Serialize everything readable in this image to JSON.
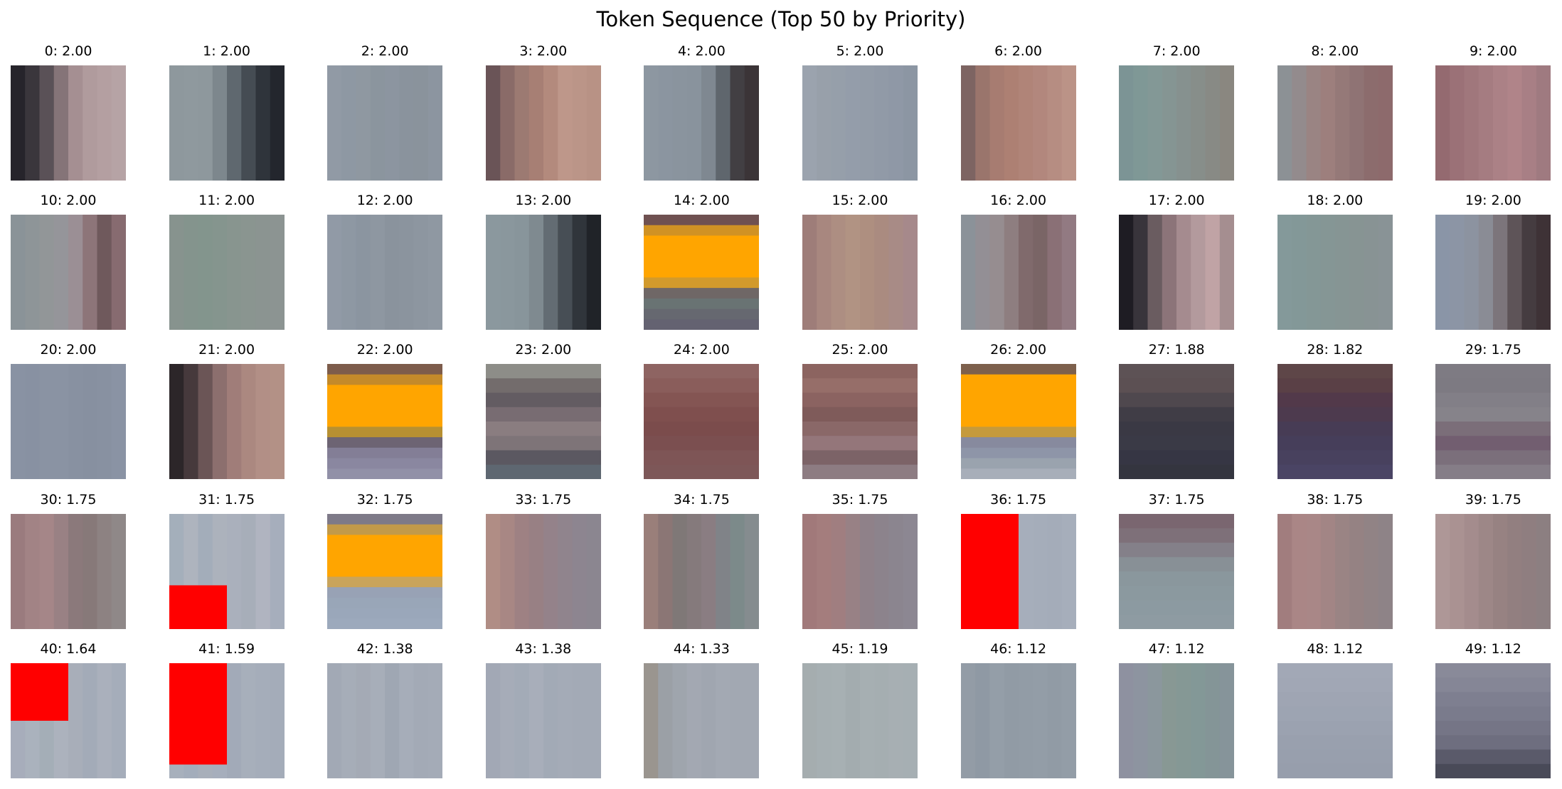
{
  "chart_data": {
    "type": "image-grid",
    "title": "Token Sequence (Top 50 by Priority)",
    "tokens": [
      {
        "index": 0,
        "priority": "2.00",
        "colors": [
          "#26242b",
          "#3a363c",
          "#5a5157",
          "#857478",
          "#a58f92",
          "#b09b9d",
          "#b49fa1",
          "#b6a3a5"
        ],
        "dir": "v"
      },
      {
        "index": 1,
        "priority": "2.00",
        "colors": [
          "#8e989d",
          "#8f999e",
          "#8e989d",
          "#7d878d",
          "#5f686f",
          "#454c53",
          "#2f343b",
          "#23262d"
        ],
        "dir": "v"
      },
      {
        "index": 2,
        "priority": "2.00",
        "colors": [
          "#919aa5",
          "#8e98a3",
          "#8f98a1",
          "#8b959e",
          "#8c95a0",
          "#8a939d",
          "#8a939c",
          "#8c95a0"
        ],
        "dir": "v"
      },
      {
        "index": 3,
        "priority": "2.00",
        "colors": [
          "#6a5457",
          "#8a6b68",
          "#9c7a72",
          "#a77f74",
          "#b38a7d",
          "#be978a",
          "#bb9588",
          "#b89285"
        ],
        "dir": "v"
      },
      {
        "index": 4,
        "priority": "2.00",
        "colors": [
          "#8d97a1",
          "#8b95a0",
          "#8a949e",
          "#89939d",
          "#7f8891",
          "#5f666d",
          "#423f43",
          "#3b3437"
        ],
        "dir": "v"
      },
      {
        "index": 5,
        "priority": "2.00",
        "colors": [
          "#9ba3ae",
          "#98a0aa",
          "#969faa",
          "#949daa",
          "#939ca8",
          "#919aa7",
          "#8f98a6",
          "#8c96a3"
        ],
        "dir": "v"
      },
      {
        "index": 6,
        "priority": "2.00",
        "colors": [
          "#7d6462",
          "#9a756c",
          "#a77c71",
          "#ad8073",
          "#b08478",
          "#b2877d",
          "#b68d82",
          "#bb9387"
        ],
        "dir": "v"
      },
      {
        "index": 7,
        "priority": "2.00",
        "colors": [
          "#7c9495",
          "#7f9896",
          "#839896",
          "#859593",
          "#86918f",
          "#878e8a",
          "#888a85",
          "#8a8780"
        ],
        "dir": "v"
      },
      {
        "index": 8,
        "priority": "2.00",
        "colors": [
          "#8c9195",
          "#938b8d",
          "#9a8483",
          "#9d7f7d",
          "#957978",
          "#8f7374",
          "#8c6c6d",
          "#8d6a6c"
        ],
        "dir": "v"
      },
      {
        "index": 9,
        "priority": "2.00",
        "colors": [
          "#946a70",
          "#9b7177",
          "#a0777c",
          "#a57c81",
          "#ab8186",
          "#b08489",
          "#a87f85",
          "#9f7a80"
        ],
        "dir": "v"
      },
      {
        "index": 10,
        "priority": "2.00",
        "colors": [
          "#8a9398",
          "#8e9598",
          "#929698",
          "#95959a",
          "#9b8f95",
          "#8d7579",
          "#6f595c",
          "#876b70"
        ],
        "dir": "v"
      },
      {
        "index": 11,
        "priority": "2.00",
        "colors": [
          "#87938e",
          "#84948d",
          "#83958d",
          "#85958e",
          "#88958f",
          "#8a9590",
          "#8b9491",
          "#8c9492"
        ],
        "dir": "v"
      },
      {
        "index": 12,
        "priority": "2.00",
        "colors": [
          "#919aa6",
          "#8e98a3",
          "#8b95a0",
          "#8e97a1",
          "#8a939d",
          "#8b949e",
          "#8d96a0",
          "#8f98a2"
        ],
        "dir": "v"
      },
      {
        "index": 13,
        "priority": "2.00",
        "colors": [
          "#8b989e",
          "#8a979d",
          "#88959b",
          "#7f8a90",
          "#636c73",
          "#474e55",
          "#30353b",
          "#202328"
        ],
        "dir": "v"
      },
      {
        "index": 14,
        "priority": "2.00",
        "colors": [
          "#6f5151",
          "#d09224",
          "#ffa500",
          "#ffa500",
          "#ffa500",
          "#ffa500",
          "#d29a2c",
          "#6f6766",
          "#697373",
          "#666870",
          "#646271"
        ],
        "dir": "h"
      },
      {
        "index": 15,
        "priority": "2.00",
        "colors": [
          "#9e7d79",
          "#a8877f",
          "#ad8e82",
          "#b19383",
          "#ae8f80",
          "#aa8b80",
          "#a88b86",
          "#a6898b"
        ],
        "dir": "v"
      },
      {
        "index": 16,
        "priority": "2.00",
        "colors": [
          "#8b9299",
          "#938f95",
          "#968d90",
          "#8e7e80",
          "#806a6c",
          "#7a6566",
          "#8a7076",
          "#927a82"
        ],
        "dir": "v"
      },
      {
        "index": 17,
        "priority": "2.00",
        "colors": [
          "#1e1c23",
          "#38343b",
          "#6a5c60",
          "#8c7479",
          "#a58b8f",
          "#b39a9d",
          "#c0a3a5",
          "#a58e90"
        ],
        "dir": "v"
      },
      {
        "index": 18,
        "priority": "2.00",
        "colors": [
          "#84999a",
          "#839898",
          "#849796",
          "#859695",
          "#869594",
          "#879493",
          "#889394",
          "#899396"
        ],
        "dir": "v"
      },
      {
        "index": 19,
        "priority": "2.00",
        "colors": [
          "#8a95a7",
          "#8c95a5",
          "#8c93a0",
          "#8a8c95",
          "#7c757b",
          "#5e5458",
          "#453c40",
          "#3e3236"
        ],
        "dir": "v"
      },
      {
        "index": 20,
        "priority": "2.00",
        "colors": [
          "#8992a3",
          "#8891a2",
          "#8a93a3",
          "#8a93a3",
          "#8891a1",
          "#8790a0",
          "#8891a1",
          "#8a93a4"
        ],
        "dir": "v"
      },
      {
        "index": 21,
        "priority": "2.00",
        "colors": [
          "#2c2629",
          "#46393c",
          "#6b5556",
          "#8c6f6e",
          "#a07d79",
          "#ab8880",
          "#b28f86",
          "#b39186"
        ],
        "dir": "v"
      },
      {
        "index": 22,
        "priority": "2.00",
        "colors": [
          "#7d5c4b",
          "#c48a2a",
          "#ffa500",
          "#ffa500",
          "#ffa500",
          "#ffa500",
          "#b79032",
          "#6d6473",
          "#837e96",
          "#8a87a0",
          "#9190a7"
        ],
        "dir": "h"
      },
      {
        "index": 23,
        "priority": "2.00",
        "colors": [
          "#8d8d88",
          "#736c6c",
          "#635c62",
          "#786c72",
          "#8a7d80",
          "#7e7478",
          "#5b5861",
          "#5e6771"
        ],
        "dir": "h"
      },
      {
        "index": 24,
        "priority": "2.00",
        "colors": [
          "#8e6462",
          "#8a5d5b",
          "#845553",
          "#7f4f4e",
          "#7b4c4c",
          "#7b4f50",
          "#7e5556",
          "#7d5758"
        ],
        "dir": "h"
      },
      {
        "index": 25,
        "priority": "2.00",
        "colors": [
          "#8c6460",
          "#966e69",
          "#8b6361",
          "#7f5b5a",
          "#8a6868",
          "#94767a",
          "#7c6367",
          "#8d7c82"
        ],
        "dir": "h"
      },
      {
        "index": 26,
        "priority": "2.00",
        "colors": [
          "#7d604c",
          "#ffa500",
          "#ffa500",
          "#ffa500",
          "#ffa500",
          "#ffa500",
          "#c59a3c",
          "#878a9e",
          "#8e95a8",
          "#9aa3ae",
          "#a7aeb9"
        ],
        "dir": "h"
      },
      {
        "index": 27,
        "priority": "1.88",
        "colors": [
          "#5d5255",
          "#5c5053",
          "#4f484e",
          "#403d46",
          "#3a3944",
          "#3a3a46",
          "#363644",
          "#34353f"
        ],
        "dir": "h"
      },
      {
        "index": 28,
        "priority": "1.82",
        "colors": [
          "#5e4648",
          "#5a4046",
          "#52394a",
          "#4d3a4e",
          "#473c55",
          "#463e5a",
          "#48415e",
          "#4a4464"
        ],
        "dir": "h"
      },
      {
        "index": 29,
        "priority": "1.75",
        "colors": [
          "#7e7b83",
          "#7d7a82",
          "#827f87",
          "#86838a",
          "#7b6e79",
          "#725e70",
          "#7b6f7b",
          "#857d87"
        ],
        "dir": "h"
      },
      {
        "index": 30,
        "priority": "1.75",
        "colors": [
          "#9a7b7e",
          "#a28385",
          "#a58688",
          "#998184",
          "#8b797b",
          "#877979",
          "#8d8282",
          "#8f8888"
        ],
        "dir": "v"
      },
      {
        "index": 31,
        "priority": "1.75",
        "colors": [
          "#a4afbb",
          "#aeb4be",
          "#a3adba",
          "#acb2bc",
          "#aab0bc",
          "#a7aeb9",
          "#b0b4c0",
          "#a6aebc"
        ],
        "dir": "v",
        "red_box": [
          0,
          0.62,
          0.5,
          1
        ]
      },
      {
        "index": 32,
        "priority": "1.75",
        "colors": [
          "#7e7a88",
          "#c29a4a",
          "#ffa500",
          "#ffa500",
          "#ffa500",
          "#ffa500",
          "#c9a45b",
          "#98a2b5",
          "#99a6b8",
          "#9aa7ba",
          "#9ca9bc"
        ],
        "dir": "h"
      },
      {
        "index": 33,
        "priority": "1.75",
        "colors": [
          "#b08d85",
          "#a88784",
          "#9e8183",
          "#988084",
          "#94828a",
          "#90848d",
          "#8d8590",
          "#8b8690"
        ],
        "dir": "v"
      },
      {
        "index": 34,
        "priority": "1.75",
        "colors": [
          "#9a7f7a",
          "#8b7675",
          "#7f7877",
          "#857a7c",
          "#8a7d82",
          "#808388",
          "#7c8a8a",
          "#858c8f"
        ],
        "dir": "v"
      },
      {
        "index": 35,
        "priority": "1.75",
        "colors": [
          "#a1797a",
          "#a47d7d",
          "#a07e80",
          "#988185",
          "#8f8189",
          "#8c838c",
          "#8b858f",
          "#8c8792"
        ],
        "dir": "v"
      },
      {
        "index": 36,
        "priority": "1.75",
        "colors": [
          "#a4adba",
          "#a6afbc",
          "#a5aebb",
          "#a8b0bd",
          "#a6aebb",
          "#a5adba",
          "#a4acb9",
          "#a6aebb"
        ],
        "dir": "v",
        "red_box": [
          0,
          0,
          0.5,
          1
        ]
      },
      {
        "index": 37,
        "priority": "1.75",
        "colors": [
          "#7a6670",
          "#7e7079",
          "#848089",
          "#889096",
          "#8a979d",
          "#8b999f",
          "#8c9aa1",
          "#8e9ba2"
        ],
        "dir": "h"
      },
      {
        "index": 38,
        "priority": "1.75",
        "colors": [
          "#a17d7e",
          "#aa8686",
          "#a98787",
          "#a28585",
          "#9a8484",
          "#958283",
          "#918385",
          "#8e8387"
        ],
        "dir": "v"
      },
      {
        "index": 39,
        "priority": "1.75",
        "colors": [
          "#ae9797",
          "#aa9292",
          "#a48c8d",
          "#9d8787",
          "#978282",
          "#927f80",
          "#8f7e80",
          "#8c7f81"
        ],
        "dir": "v"
      },
      {
        "index": 40,
        "priority": "1.64",
        "colors": [
          "#a7adbb",
          "#aab2bd",
          "#a4aeb7",
          "#acb2bd",
          "#a8aeb9",
          "#a3abb8",
          "#aab0bc",
          "#a5adba"
        ],
        "dir": "v",
        "red_box": [
          0,
          0,
          0.5,
          0.5
        ]
      },
      {
        "index": 41,
        "priority": "1.59",
        "colors": [
          "#a7b0bc",
          "#a3adbb",
          "#a8afba",
          "#a6aebc",
          "#a2aab8",
          "#a7afbb",
          "#a5adba",
          "#a4acb9"
        ],
        "dir": "v",
        "red_box": [
          0,
          0,
          0.5,
          0.88
        ]
      },
      {
        "index": 42,
        "priority": "1.38",
        "colors": [
          "#a2a9b5",
          "#a6adb8",
          "#a4aab5",
          "#a7aeb9",
          "#9fa7b3",
          "#a6adb9",
          "#a3aab6",
          "#a4abb7"
        ],
        "dir": "v"
      },
      {
        "index": 43,
        "priority": "1.38",
        "colors": [
          "#a2a8b5",
          "#a6acb8",
          "#a3abb7",
          "#a8aeba",
          "#a2aab6",
          "#a4abb7",
          "#a3aab6",
          "#a3aab6"
        ],
        "dir": "v"
      },
      {
        "index": 44,
        "priority": "1.33",
        "colors": [
          "#9a958f",
          "#9ba0a6",
          "#9fa5ad",
          "#a3a8b2",
          "#a0a6b0",
          "#a3a9b3",
          "#a2a8b2",
          "#a2a8b2"
        ],
        "dir": "v"
      },
      {
        "index": 45,
        "priority": "1.19",
        "colors": [
          "#a5adaf",
          "#a6afb2",
          "#a7b0b3",
          "#a3acaf",
          "#a6afb2",
          "#a5aeb1",
          "#a7afb3",
          "#a6afb3"
        ],
        "dir": "v"
      },
      {
        "index": 46,
        "priority": "1.12",
        "colors": [
          "#939ca6",
          "#8f99a4",
          "#949ea8",
          "#919ba5",
          "#929ca6",
          "#939da7",
          "#919ba5",
          "#939da7"
        ],
        "dir": "v"
      },
      {
        "index": 47,
        "priority": "1.12",
        "colors": [
          "#8e91a0",
          "#8d94a0",
          "#8b979d",
          "#889894",
          "#859895",
          "#839897",
          "#849597",
          "#86949a"
        ],
        "dir": "v"
      },
      {
        "index": 48,
        "priority": "1.12",
        "colors": [
          "#a2a8b6",
          "#a1a7b5",
          "#9fa5b3",
          "#9da4b2",
          "#9ba2b0",
          "#99a0ae",
          "#989fad",
          "#979eac"
        ],
        "dir": "h"
      },
      {
        "index": 49,
        "priority": "1.12",
        "colors": [
          "#898a99",
          "#858696",
          "#7e7f90",
          "#7a7b8c",
          "#757586",
          "#6e6e7f",
          "#5a5a6a",
          "#494a58"
        ],
        "dir": "h"
      }
    ]
  }
}
